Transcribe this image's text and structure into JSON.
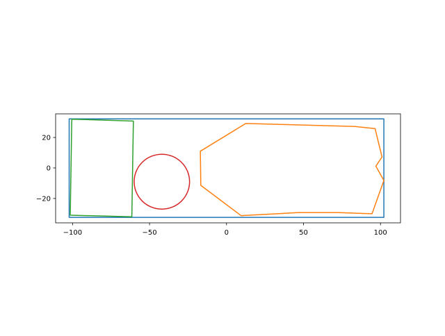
{
  "chart_data": {
    "type": "line",
    "title": "",
    "xlabel": "",
    "ylabel": "",
    "xlim": [
      -111,
      113
    ],
    "ylim": [
      -36,
      35.5
    ],
    "grid": false,
    "legend": "none",
    "x_ticks": [
      -100,
      -50,
      0,
      50,
      100
    ],
    "x_tick_labels": [
      "−100",
      "−50",
      "0",
      "50",
      "100"
    ],
    "y_ticks": [
      -20,
      0,
      20
    ],
    "y_tick_labels": [
      "−20",
      "0",
      "20"
    ],
    "series": [
      {
        "color": "#1f77b4",
        "closed": true,
        "points": [
          [
            -102.2,
            32.2
          ],
          [
            102.2,
            32.2
          ],
          [
            102.2,
            -32.4
          ],
          [
            -102.2,
            -32.4
          ]
        ]
      },
      {
        "color": "#ff7f0e",
        "closed": true,
        "points": [
          [
            12.5,
            29.2
          ],
          [
            83.5,
            27.2
          ],
          [
            96.5,
            25.8
          ],
          [
            101,
            7.2
          ],
          [
            97,
            1.2
          ],
          [
            102.2,
            -8.2
          ],
          [
            94.5,
            -30.0
          ],
          [
            73,
            -29.3
          ],
          [
            46,
            -29.3
          ],
          [
            9.5,
            -31.3
          ],
          [
            -16.7,
            -11.4
          ],
          [
            -17.0,
            11.0
          ]
        ]
      },
      {
        "color": "#2ca02c",
        "closed": true,
        "points": [
          [
            -100.5,
            32.0
          ],
          [
            -60.5,
            30.8
          ],
          [
            -61.5,
            -32.0
          ],
          [
            -101.5,
            -31.0
          ]
        ]
      },
      {
        "color": "#d62728",
        "closed": true,
        "shape": "circle",
        "center": [
          -42.0,
          -9.0
        ],
        "radius": 18.0
      }
    ]
  }
}
